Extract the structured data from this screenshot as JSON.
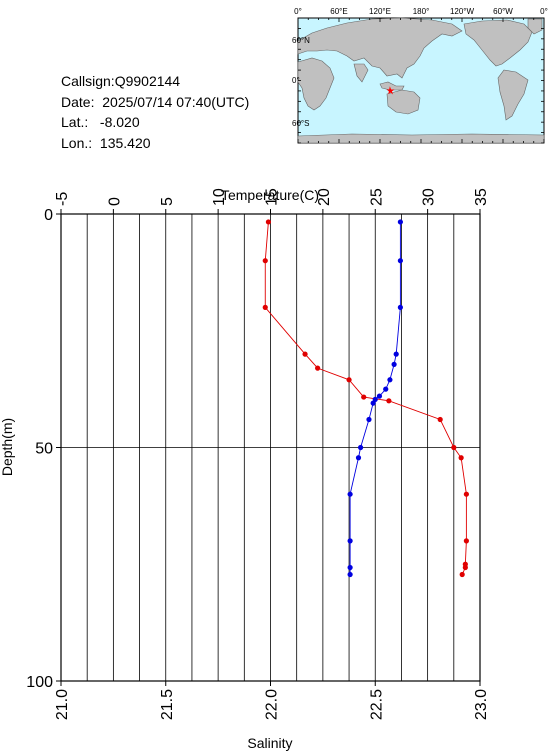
{
  "info": {
    "callsign": "Callsign:Q9902144",
    "date": "Date:  2025/07/14 07:40(UTC)",
    "lat": "Lat.:   -8.020",
    "lon": "Lon.:  135.420"
  },
  "map": {
    "top_labels": [
      "0°",
      "60°E",
      "120°E",
      "180°",
      "120°W",
      "60°W",
      "0°"
    ],
    "lat_labels": [
      "60°N",
      "0°",
      "60°S"
    ],
    "marker_color": "#ff0000",
    "ocean_color": "#c8f5ff",
    "land_color": "#c0c0c0"
  },
  "chart_data": {
    "type": "line",
    "temperature_axis": {
      "label": "Temperature(C)",
      "range": [
        -5,
        35
      ],
      "ticks": [
        "-5",
        "0",
        "5",
        "10",
        "15",
        "20",
        "25",
        "30",
        "35"
      ]
    },
    "salinity_axis": {
      "label": "Salinity",
      "range": [
        21.0,
        23.0
      ],
      "ticks": [
        "21.0",
        "21.5",
        "22.0",
        "22.5",
        "23.0"
      ]
    },
    "depth_axis": {
      "label": "Depth(m)",
      "range": [
        0,
        100
      ],
      "ticks": [
        "0",
        "50",
        "100"
      ]
    },
    "grid": true,
    "series": [
      {
        "color": "#e00000",
        "axis": "temperature",
        "points": [
          [
            14.8,
            1.7
          ],
          [
            14.5,
            10
          ],
          [
            14.5,
            20
          ],
          [
            18.3,
            30
          ],
          [
            19.5,
            33
          ],
          [
            22.5,
            35.5
          ],
          [
            23.9,
            39.2
          ],
          [
            26.3,
            40
          ],
          [
            31.2,
            44
          ],
          [
            32.5,
            50
          ],
          [
            33.2,
            52.2
          ],
          [
            33.7,
            60
          ],
          [
            33.7,
            70
          ],
          [
            33.6,
            75
          ],
          [
            33.6,
            75.7
          ],
          [
            33.3,
            77.2
          ]
        ]
      },
      {
        "color": "#0000e0",
        "axis": "salinity",
        "points": [
          [
            22.62,
            1.7
          ],
          [
            22.62,
            10
          ],
          [
            22.62,
            20
          ],
          [
            22.6,
            30
          ],
          [
            22.59,
            32.2
          ],
          [
            22.57,
            35.5
          ],
          [
            22.55,
            37.5
          ],
          [
            22.52,
            39
          ],
          [
            22.5,
            39.7
          ],
          [
            22.49,
            40.5
          ],
          [
            22.47,
            44
          ],
          [
            22.43,
            50
          ],
          [
            22.42,
            52.2
          ],
          [
            22.38,
            60
          ],
          [
            22.38,
            70
          ],
          [
            22.38,
            75.7
          ],
          [
            22.38,
            77.2
          ]
        ]
      }
    ]
  }
}
